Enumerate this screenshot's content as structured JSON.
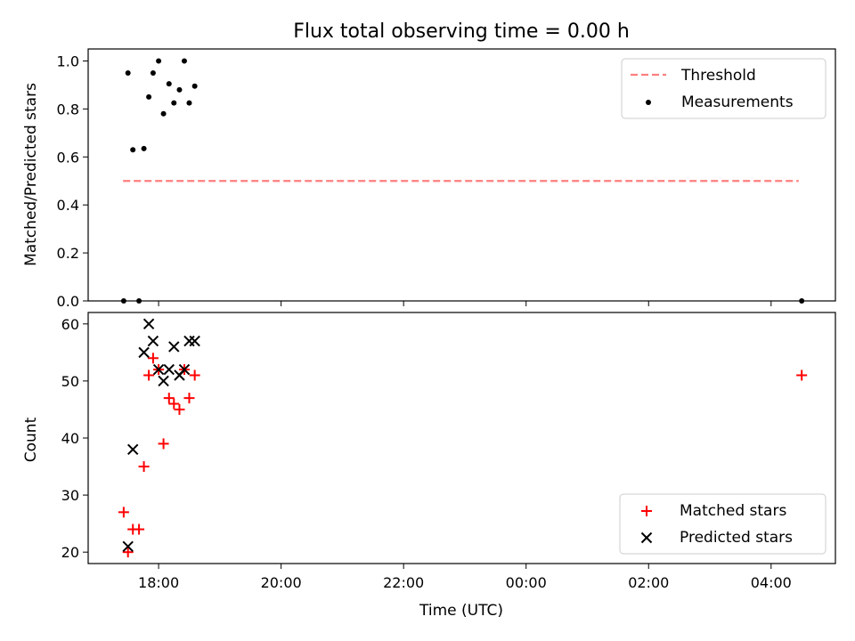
{
  "figure": {
    "title": "Flux total observing time = 0.00 h",
    "xlabel": "Time (UTC)",
    "x_ticks": [
      "18:00",
      "20:00",
      "22:00",
      "00:00",
      "02:00",
      "04:00"
    ],
    "x_tick_hours": [
      18,
      20,
      22,
      24,
      26,
      28
    ],
    "xlim_hours": [
      16.85,
      29.05
    ]
  },
  "chart_data": [
    {
      "type": "scatter",
      "name": "ratio",
      "ylabel": "Matched/Predicted stars",
      "ylim": [
        0,
        1.05
      ],
      "y_ticks": [
        "0.0",
        "0.2",
        "0.4",
        "0.6",
        "0.8",
        "1.0"
      ],
      "y_tick_values": [
        0,
        0.2,
        0.4,
        0.6,
        0.8,
        1.0
      ],
      "legend": {
        "placement": "top-right",
        "entries": [
          "Threshold",
          "Measurements"
        ]
      },
      "threshold": {
        "label": "Threshold",
        "value": 0.5,
        "x_range": [
          17.42,
          28.45
        ],
        "color": "#ff7f7f",
        "style": "dashed"
      },
      "series": [
        {
          "name": "Measurements",
          "color": "#000000",
          "marker": "dot",
          "x": [
            17.43,
            17.5,
            17.58,
            17.68,
            17.76,
            17.84,
            17.91,
            18.0,
            18.08,
            18.17,
            18.25,
            18.34,
            18.42,
            18.5,
            18.59,
            28.5
          ],
          "y": [
            0.0,
            0.95,
            0.63,
            0.0,
            0.635,
            0.85,
            0.95,
            1.0,
            0.78,
            0.905,
            0.825,
            0.88,
            1.0,
            0.825,
            0.895,
            0.0
          ]
        }
      ]
    },
    {
      "type": "scatter",
      "name": "counts",
      "ylabel": "Count",
      "ylim": [
        18,
        62
      ],
      "y_ticks": [
        "20",
        "30",
        "40",
        "50",
        "60"
      ],
      "y_tick_values": [
        20,
        30,
        40,
        50,
        60
      ],
      "legend": {
        "placement": "bottom-right",
        "entries": [
          "Matched stars",
          "Predicted stars"
        ]
      },
      "series": [
        {
          "name": "Matched stars",
          "color": "#ff0000",
          "marker": "plus",
          "x": [
            17.43,
            17.5,
            17.58,
            17.68,
            17.76,
            17.84,
            17.91,
            18.0,
            18.08,
            18.17,
            18.25,
            18.34,
            18.42,
            18.5,
            18.59,
            28.5
          ],
          "y": [
            27,
            20,
            24,
            24,
            35,
            51,
            54,
            52,
            39,
            47,
            46,
            45,
            52,
            47,
            51,
            51
          ]
        },
        {
          "name": "Predicted stars",
          "color": "#000000",
          "marker": "x",
          "x": [
            17.5,
            17.58,
            17.76,
            17.84,
            17.91,
            18.0,
            18.08,
            18.17,
            18.25,
            18.34,
            18.42,
            18.5,
            18.59
          ],
          "y": [
            21,
            38,
            55,
            60,
            57,
            52,
            50,
            52,
            56,
            51,
            52,
            57,
            57
          ]
        }
      ]
    }
  ]
}
